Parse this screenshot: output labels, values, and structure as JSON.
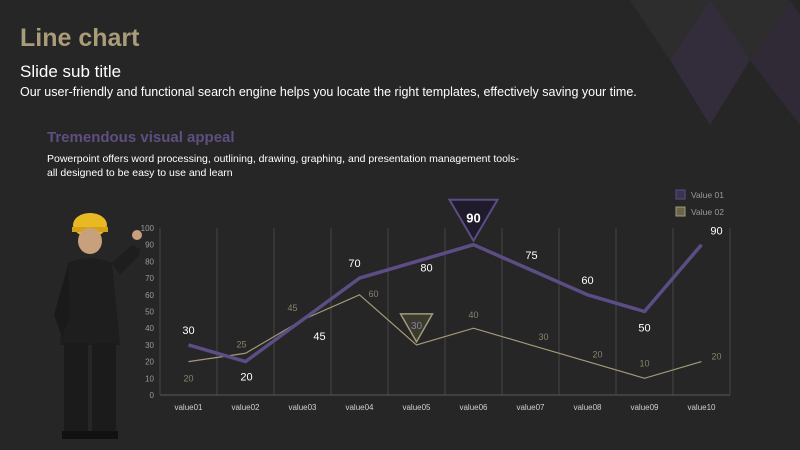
{
  "slide": {
    "title": "Line chart",
    "subtitle": "Slide sub title",
    "description": "Our user-friendly and functional search engine helps you locate the right templates, effectively saving your time.",
    "section_title": "Tremendous visual appeal",
    "section_body": "Powerpoint offers word processing, outlining, drawing, graphing, and presentation management tools- all designed to be easy to use and learn"
  },
  "colors": {
    "background": "#262626",
    "title": "#a99c79",
    "accent_purple": "#5f4f80",
    "series1": "#5c4d85",
    "series2": "#a39a78",
    "grid": "#5a5a5a"
  },
  "chart_data": {
    "type": "line",
    "categories": [
      "value01",
      "value02",
      "value03",
      "value04",
      "value05",
      "value06",
      "value07",
      "value08",
      "value09",
      "value10"
    ],
    "series": [
      {
        "name": "Value 01",
        "values": [
          30,
          20,
          45,
          70,
          80,
          90,
          75,
          60,
          50,
          90
        ]
      },
      {
        "name": "Value 02",
        "values": [
          20,
          25,
          45,
          60,
          30,
          40,
          30,
          20,
          10,
          20
        ]
      }
    ],
    "y_ticks": [
      "0",
      "10",
      "20",
      "30",
      "40",
      "50",
      "60",
      "70",
      "80",
      "90",
      "100"
    ],
    "ylim": [
      0,
      100
    ],
    "grid": "vertical",
    "legend": "top-right",
    "callouts": [
      {
        "series": 0,
        "index": 5,
        "label": "90"
      },
      {
        "series": 1,
        "index": 4,
        "label": "30"
      }
    ]
  }
}
